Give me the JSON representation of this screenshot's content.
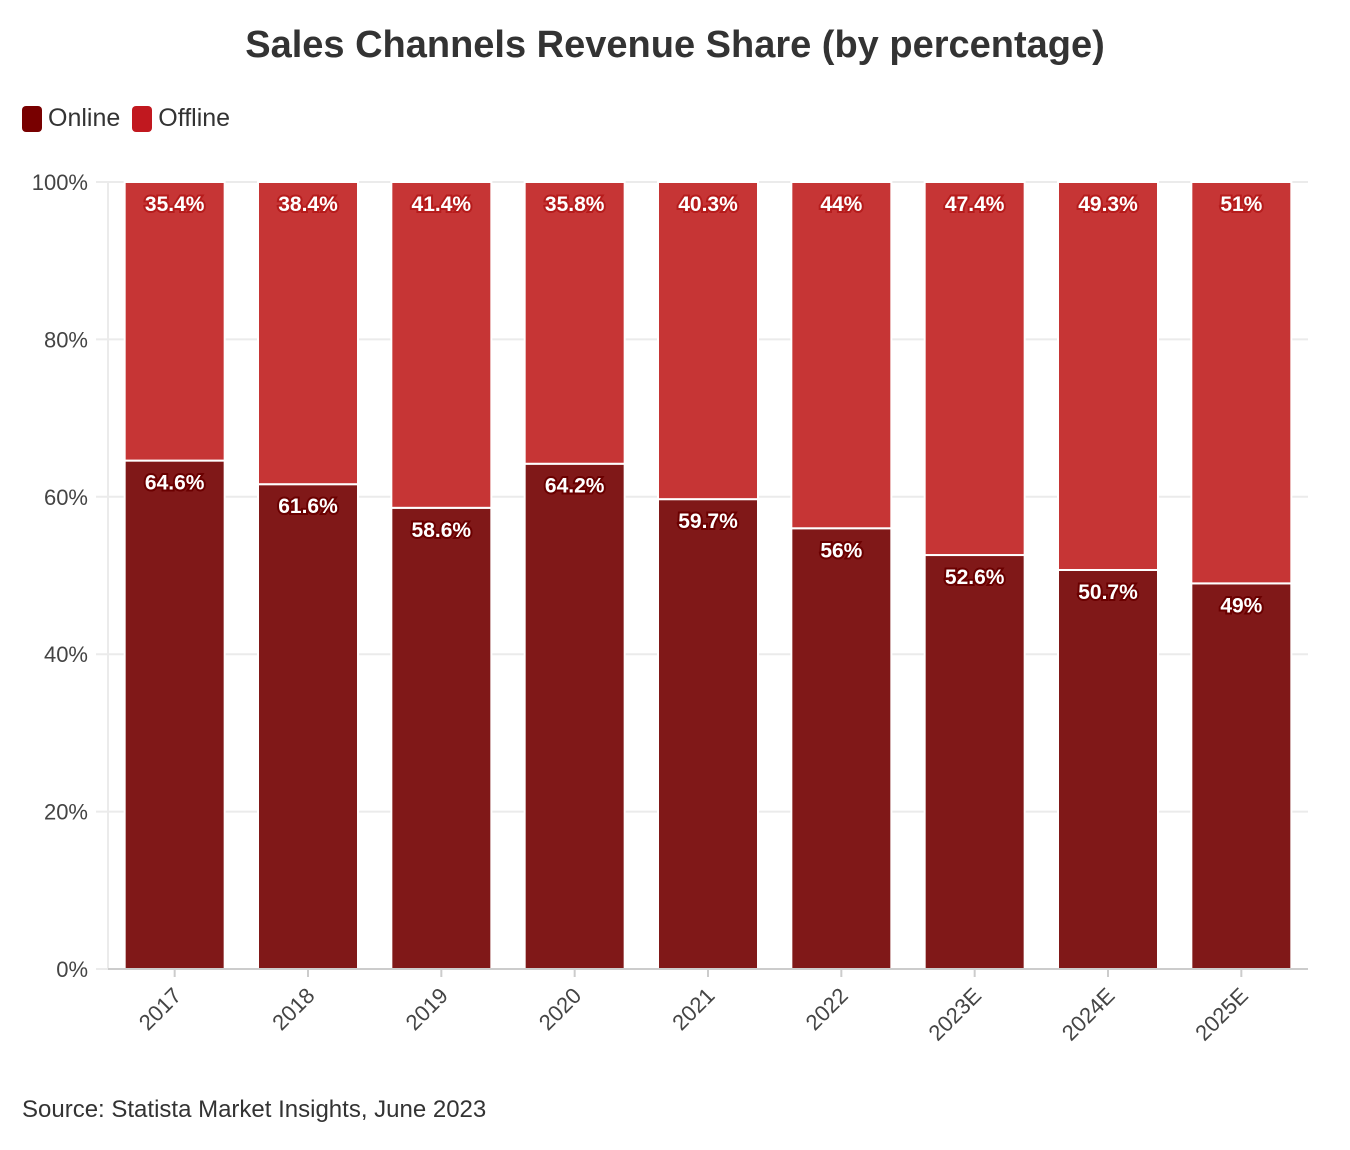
{
  "chart_data": {
    "type": "bar",
    "stacked": true,
    "title": "Sales Channels Revenue Share (by percentage)",
    "categories": [
      "2017",
      "2018",
      "2019",
      "2020",
      "2021",
      "2022",
      "2023E",
      "2024E",
      "2025E"
    ],
    "series": [
      {
        "name": "Online",
        "values": [
          64.6,
          61.6,
          58.6,
          64.2,
          59.7,
          56,
          52.6,
          50.7,
          49
        ],
        "labels": [
          "64.6%",
          "61.6%",
          "58.6%",
          "64.2%",
          "59.7%",
          "56%",
          "52.6%",
          "50.7%",
          "49%"
        ],
        "color": "#801818",
        "legend_color": "#780000",
        "label_stroke": "#6a0000"
      },
      {
        "name": "Offline",
        "values": [
          35.4,
          38.4,
          41.4,
          35.8,
          40.3,
          44,
          47.4,
          49.3,
          51
        ],
        "labels": [
          "35.4%",
          "38.4%",
          "41.4%",
          "35.8%",
          "40.3%",
          "44%",
          "47.4%",
          "49.3%",
          "51%"
        ],
        "color": "#c63535",
        "legend_color": "#c1181f",
        "label_stroke": "#b51c1c"
      }
    ],
    "yticks": [
      "0%",
      "20%",
      "40%",
      "60%",
      "80%",
      "100%"
    ],
    "ylim": [
      0,
      100
    ],
    "grid": true,
    "legend_position": "top-left",
    "source": "Source: Statista Market Insights, June 2023"
  }
}
